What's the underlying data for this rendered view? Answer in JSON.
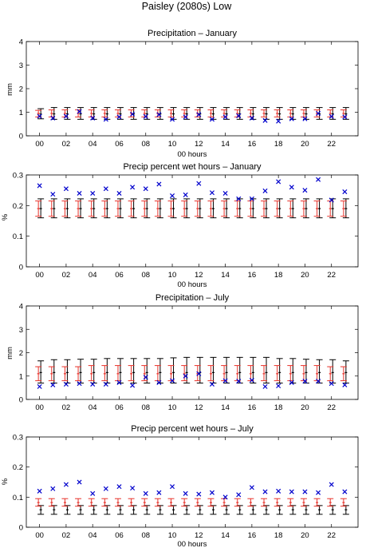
{
  "figure": {
    "title": "Paisley (2080s) Low"
  },
  "colors": {
    "observed": "#0000cc",
    "model_red": "#e8332b",
    "model_black": "#000000"
  },
  "chart_data": [
    {
      "type": "scatter",
      "title": "Precipitation – January",
      "xlabel": "00 hours",
      "ylabel": "mm",
      "xlim": [
        -1,
        24
      ],
      "ylim": [
        0,
        4
      ],
      "yticks": [
        0,
        1,
        2,
        3,
        4
      ],
      "yticklabels": [
        "0",
        "1",
        "2",
        "3",
        "4"
      ],
      "xticks": [
        0,
        2,
        4,
        6,
        8,
        10,
        12,
        14,
        16,
        18,
        20,
        22
      ],
      "xticklabels": [
        "00",
        "02",
        "04",
        "06",
        "08",
        "10",
        "12",
        "14",
        "16",
        "18",
        "20",
        "22"
      ],
      "x": [
        0,
        1,
        2,
        3,
        4,
        5,
        6,
        7,
        8,
        9,
        10,
        11,
        12,
        13,
        14,
        15,
        16,
        17,
        18,
        19,
        20,
        21,
        22,
        23
      ],
      "observed": [
        0.83,
        0.75,
        0.83,
        1.03,
        0.75,
        0.7,
        0.8,
        0.92,
        0.82,
        0.9,
        0.7,
        0.8,
        0.9,
        0.7,
        0.8,
        0.85,
        0.75,
        0.65,
        0.62,
        0.72,
        0.72,
        0.95,
        0.82,
        0.8
      ],
      "red_bars": {
        "low": [
          0.8,
          0.8,
          0.8,
          0.8,
          0.8,
          0.8,
          0.8,
          0.8,
          0.8,
          0.8,
          0.8,
          0.8,
          0.8,
          0.8,
          0.8,
          0.8,
          0.8,
          0.8,
          0.8,
          0.8,
          0.8,
          0.8,
          0.8,
          0.8
        ],
        "mid": [
          0.95,
          0.95,
          0.95,
          0.95,
          0.95,
          0.95,
          0.95,
          0.95,
          0.95,
          0.95,
          0.95,
          0.95,
          0.95,
          0.95,
          0.95,
          0.95,
          0.95,
          0.95,
          0.95,
          0.95,
          0.95,
          0.95,
          0.95,
          0.95
        ],
        "high": [
          1.08,
          1.1,
          1.1,
          1.1,
          1.1,
          1.1,
          1.1,
          1.1,
          1.1,
          1.1,
          1.1,
          1.1,
          1.1,
          1.1,
          1.1,
          1.1,
          1.1,
          1.1,
          1.1,
          1.1,
          1.1,
          1.1,
          1.1,
          1.1
        ]
      },
      "black_bars": {
        "low": [
          0.72,
          0.7,
          0.7,
          0.7,
          0.7,
          0.7,
          0.7,
          0.7,
          0.7,
          0.7,
          0.7,
          0.7,
          0.7,
          0.7,
          0.7,
          0.7,
          0.7,
          0.7,
          0.7,
          0.7,
          0.7,
          0.7,
          0.7,
          0.7
        ],
        "mid": [
          0.92,
          0.93,
          0.93,
          0.93,
          0.93,
          0.93,
          0.93,
          0.93,
          0.93,
          0.93,
          0.93,
          0.93,
          0.93,
          0.93,
          0.93,
          0.93,
          0.93,
          0.93,
          0.93,
          0.93,
          0.93,
          0.93,
          0.93,
          0.93
        ],
        "high": [
          1.15,
          1.2,
          1.2,
          1.2,
          1.2,
          1.2,
          1.2,
          1.2,
          1.2,
          1.2,
          1.2,
          1.2,
          1.2,
          1.2,
          1.2,
          1.2,
          1.2,
          1.2,
          1.2,
          1.2,
          1.2,
          1.2,
          1.2,
          1.2
        ]
      }
    },
    {
      "type": "scatter",
      "title": "Precip percent wet hours – January",
      "xlabel": "00 hours",
      "ylabel": "%",
      "xlim": [
        -1,
        24
      ],
      "ylim": [
        0,
        0.3
      ],
      "yticks": [
        0,
        0.1,
        0.2,
        0.3
      ],
      "yticklabels": [
        "0",
        "0.1",
        "0.2",
        "0.3"
      ],
      "xticks": [
        0,
        2,
        4,
        6,
        8,
        10,
        12,
        14,
        16,
        18,
        20,
        22
      ],
      "xticklabels": [
        "00",
        "02",
        "04",
        "06",
        "08",
        "10",
        "12",
        "14",
        "16",
        "18",
        "20",
        "22"
      ],
      "x": [
        0,
        1,
        2,
        3,
        4,
        5,
        6,
        7,
        8,
        9,
        10,
        11,
        12,
        13,
        14,
        15,
        16,
        17,
        18,
        19,
        20,
        21,
        22,
        23
      ],
      "observed": [
        0.265,
        0.237,
        0.255,
        0.24,
        0.24,
        0.255,
        0.24,
        0.26,
        0.255,
        0.27,
        0.232,
        0.235,
        0.272,
        0.242,
        0.24,
        0.222,
        0.222,
        0.248,
        0.278,
        0.26,
        0.25,
        0.285,
        0.218,
        0.245
      ],
      "red_bars": {
        "low": [
          0.165,
          0.165,
          0.165,
          0.165,
          0.165,
          0.165,
          0.165,
          0.165,
          0.165,
          0.165,
          0.165,
          0.165,
          0.165,
          0.165,
          0.165,
          0.165,
          0.165,
          0.165,
          0.165,
          0.165,
          0.165,
          0.165,
          0.165,
          0.165
        ],
        "mid": [
          0.19,
          0.19,
          0.19,
          0.19,
          0.19,
          0.19,
          0.19,
          0.19,
          0.19,
          0.19,
          0.19,
          0.19,
          0.19,
          0.19,
          0.19,
          0.19,
          0.19,
          0.19,
          0.19,
          0.19,
          0.19,
          0.19,
          0.19,
          0.19
        ],
        "high": [
          0.215,
          0.215,
          0.215,
          0.215,
          0.215,
          0.215,
          0.215,
          0.215,
          0.215,
          0.215,
          0.215,
          0.215,
          0.215,
          0.215,
          0.215,
          0.215,
          0.215,
          0.215,
          0.215,
          0.215,
          0.215,
          0.215,
          0.215,
          0.215
        ]
      },
      "black_bars": {
        "low": [
          0.16,
          0.16,
          0.16,
          0.16,
          0.16,
          0.16,
          0.16,
          0.16,
          0.16,
          0.16,
          0.16,
          0.16,
          0.16,
          0.16,
          0.16,
          0.16,
          0.16,
          0.16,
          0.16,
          0.16,
          0.16,
          0.16,
          0.16,
          0.16
        ],
        "mid": [
          0.19,
          0.19,
          0.19,
          0.19,
          0.19,
          0.19,
          0.19,
          0.19,
          0.19,
          0.19,
          0.19,
          0.19,
          0.19,
          0.19,
          0.19,
          0.19,
          0.19,
          0.19,
          0.19,
          0.19,
          0.19,
          0.19,
          0.19,
          0.19
        ],
        "high": [
          0.222,
          0.222,
          0.222,
          0.222,
          0.222,
          0.222,
          0.222,
          0.222,
          0.222,
          0.222,
          0.222,
          0.222,
          0.222,
          0.222,
          0.222,
          0.222,
          0.222,
          0.222,
          0.222,
          0.222,
          0.222,
          0.222,
          0.222,
          0.222
        ]
      }
    },
    {
      "type": "scatter",
      "title": "Precipitation – July",
      "xlabel": "",
      "ylabel": "mm",
      "xlim": [
        -1,
        24
      ],
      "ylim": [
        0,
        4
      ],
      "yticks": [
        0,
        1,
        2,
        3,
        4
      ],
      "yticklabels": [
        "0",
        "1",
        "2",
        "3",
        "4"
      ],
      "xticks": [
        0,
        2,
        4,
        6,
        8,
        10,
        12,
        14,
        16,
        18,
        20,
        22
      ],
      "xticklabels": [
        "00",
        "02",
        "04",
        "06",
        "08",
        "10",
        "12",
        "14",
        "16",
        "18",
        "20",
        "22"
      ],
      "x": [
        0,
        1,
        2,
        3,
        4,
        5,
        6,
        7,
        8,
        9,
        10,
        11,
        12,
        13,
        14,
        15,
        16,
        17,
        18,
        19,
        20,
        21,
        22,
        23
      ],
      "observed": [
        0.55,
        0.62,
        0.65,
        0.68,
        0.65,
        0.65,
        0.72,
        0.6,
        0.95,
        0.72,
        0.8,
        1.0,
        1.1,
        0.65,
        0.8,
        0.78,
        0.82,
        0.55,
        0.58,
        0.72,
        0.78,
        0.78,
        0.68,
        0.62
      ],
      "red_bars": {
        "low": [
          0.8,
          0.8,
          0.8,
          0.8,
          0.8,
          0.8,
          0.8,
          0.8,
          0.8,
          0.8,
          0.8,
          0.8,
          0.8,
          0.8,
          0.8,
          0.8,
          0.8,
          0.8,
          0.8,
          0.8,
          0.8,
          0.8,
          0.8,
          0.8
        ],
        "mid": [
          1.1,
          1.1,
          1.1,
          1.1,
          1.1,
          1.1,
          1.1,
          1.1,
          1.1,
          1.1,
          1.1,
          1.1,
          1.1,
          1.1,
          1.1,
          1.1,
          1.1,
          1.1,
          1.1,
          1.1,
          1.1,
          1.1,
          1.1,
          1.1
        ],
        "high": [
          1.4,
          1.4,
          1.4,
          1.4,
          1.45,
          1.45,
          1.45,
          1.45,
          1.45,
          1.45,
          1.45,
          1.45,
          1.45,
          1.45,
          1.45,
          1.45,
          1.45,
          1.45,
          1.45,
          1.45,
          1.45,
          1.45,
          1.4,
          1.4
        ]
      },
      "black_bars": {
        "low": [
          0.7,
          0.7,
          0.7,
          0.7,
          0.7,
          0.7,
          0.7,
          0.7,
          0.7,
          0.7,
          0.7,
          0.7,
          0.7,
          0.7,
          0.7,
          0.7,
          0.7,
          0.7,
          0.7,
          0.7,
          0.7,
          0.7,
          0.7,
          0.7
        ],
        "mid": [
          1.15,
          1.15,
          1.15,
          1.15,
          1.15,
          1.15,
          1.15,
          1.15,
          1.15,
          1.15,
          1.15,
          1.15,
          1.15,
          1.15,
          1.15,
          1.15,
          1.15,
          1.15,
          1.15,
          1.15,
          1.15,
          1.15,
          1.15,
          1.15
        ],
        "high": [
          1.65,
          1.7,
          1.7,
          1.72,
          1.72,
          1.75,
          1.75,
          1.75,
          1.75,
          1.75,
          1.78,
          1.8,
          1.8,
          1.8,
          1.8,
          1.8,
          1.8,
          1.8,
          1.75,
          1.75,
          1.72,
          1.7,
          1.7,
          1.65
        ]
      }
    },
    {
      "type": "scatter",
      "title": "Precip percent wet hours – July",
      "xlabel": "00 hours",
      "ylabel": "%",
      "xlim": [
        -1,
        24
      ],
      "ylim": [
        0,
        0.3
      ],
      "yticks": [
        0,
        0.1,
        0.2,
        0.3
      ],
      "yticklabels": [
        "0",
        "0.1",
        "0.2",
        "0.3"
      ],
      "xticks": [
        0,
        2,
        4,
        6,
        8,
        10,
        12,
        14,
        16,
        18,
        20,
        22
      ],
      "xticklabels": [
        "00",
        "02",
        "04",
        "06",
        "08",
        "10",
        "12",
        "14",
        "16",
        "18",
        "20",
        "22"
      ],
      "x": [
        0,
        1,
        2,
        3,
        4,
        5,
        6,
        7,
        8,
        9,
        10,
        11,
        12,
        13,
        14,
        15,
        16,
        17,
        18,
        19,
        20,
        21,
        22,
        23
      ],
      "observed": [
        0.12,
        0.128,
        0.142,
        0.15,
        0.112,
        0.128,
        0.135,
        0.13,
        0.112,
        0.115,
        0.135,
        0.112,
        0.11,
        0.115,
        0.1,
        0.108,
        0.132,
        0.118,
        0.12,
        0.118,
        0.118,
        0.115,
        0.142,
        0.118
      ],
      "red_bars": {
        "low": [
          0.07,
          0.07,
          0.07,
          0.07,
          0.07,
          0.07,
          0.07,
          0.07,
          0.07,
          0.07,
          0.07,
          0.07,
          0.07,
          0.07,
          0.07,
          0.07,
          0.07,
          0.07,
          0.07,
          0.07,
          0.07,
          0.07,
          0.07,
          0.07
        ],
        "mid": [
          0.082,
          0.082,
          0.082,
          0.082,
          0.082,
          0.082,
          0.082,
          0.082,
          0.082,
          0.082,
          0.082,
          0.082,
          0.082,
          0.082,
          0.082,
          0.082,
          0.082,
          0.082,
          0.082,
          0.082,
          0.082,
          0.082,
          0.082,
          0.082
        ],
        "high": [
          0.095,
          0.095,
          0.095,
          0.095,
          0.095,
          0.095,
          0.095,
          0.095,
          0.095,
          0.095,
          0.095,
          0.095,
          0.095,
          0.095,
          0.095,
          0.095,
          0.095,
          0.095,
          0.095,
          0.095,
          0.095,
          0.095,
          0.095,
          0.095
        ]
      },
      "black_bars": {
        "low": [
          0.043,
          0.043,
          0.043,
          0.043,
          0.043,
          0.043,
          0.043,
          0.043,
          0.043,
          0.043,
          0.043,
          0.043,
          0.043,
          0.043,
          0.043,
          0.043,
          0.043,
          0.043,
          0.043,
          0.043,
          0.043,
          0.043,
          0.043,
          0.043
        ],
        "mid": [
          0.058,
          0.058,
          0.058,
          0.058,
          0.058,
          0.058,
          0.058,
          0.058,
          0.058,
          0.058,
          0.058,
          0.058,
          0.058,
          0.058,
          0.058,
          0.058,
          0.058,
          0.058,
          0.058,
          0.058,
          0.058,
          0.058,
          0.058,
          0.058
        ],
        "high": [
          0.072,
          0.072,
          0.072,
          0.072,
          0.072,
          0.072,
          0.072,
          0.072,
          0.072,
          0.072,
          0.072,
          0.072,
          0.072,
          0.072,
          0.072,
          0.072,
          0.072,
          0.072,
          0.072,
          0.072,
          0.072,
          0.072,
          0.072,
          0.072
        ]
      }
    }
  ]
}
